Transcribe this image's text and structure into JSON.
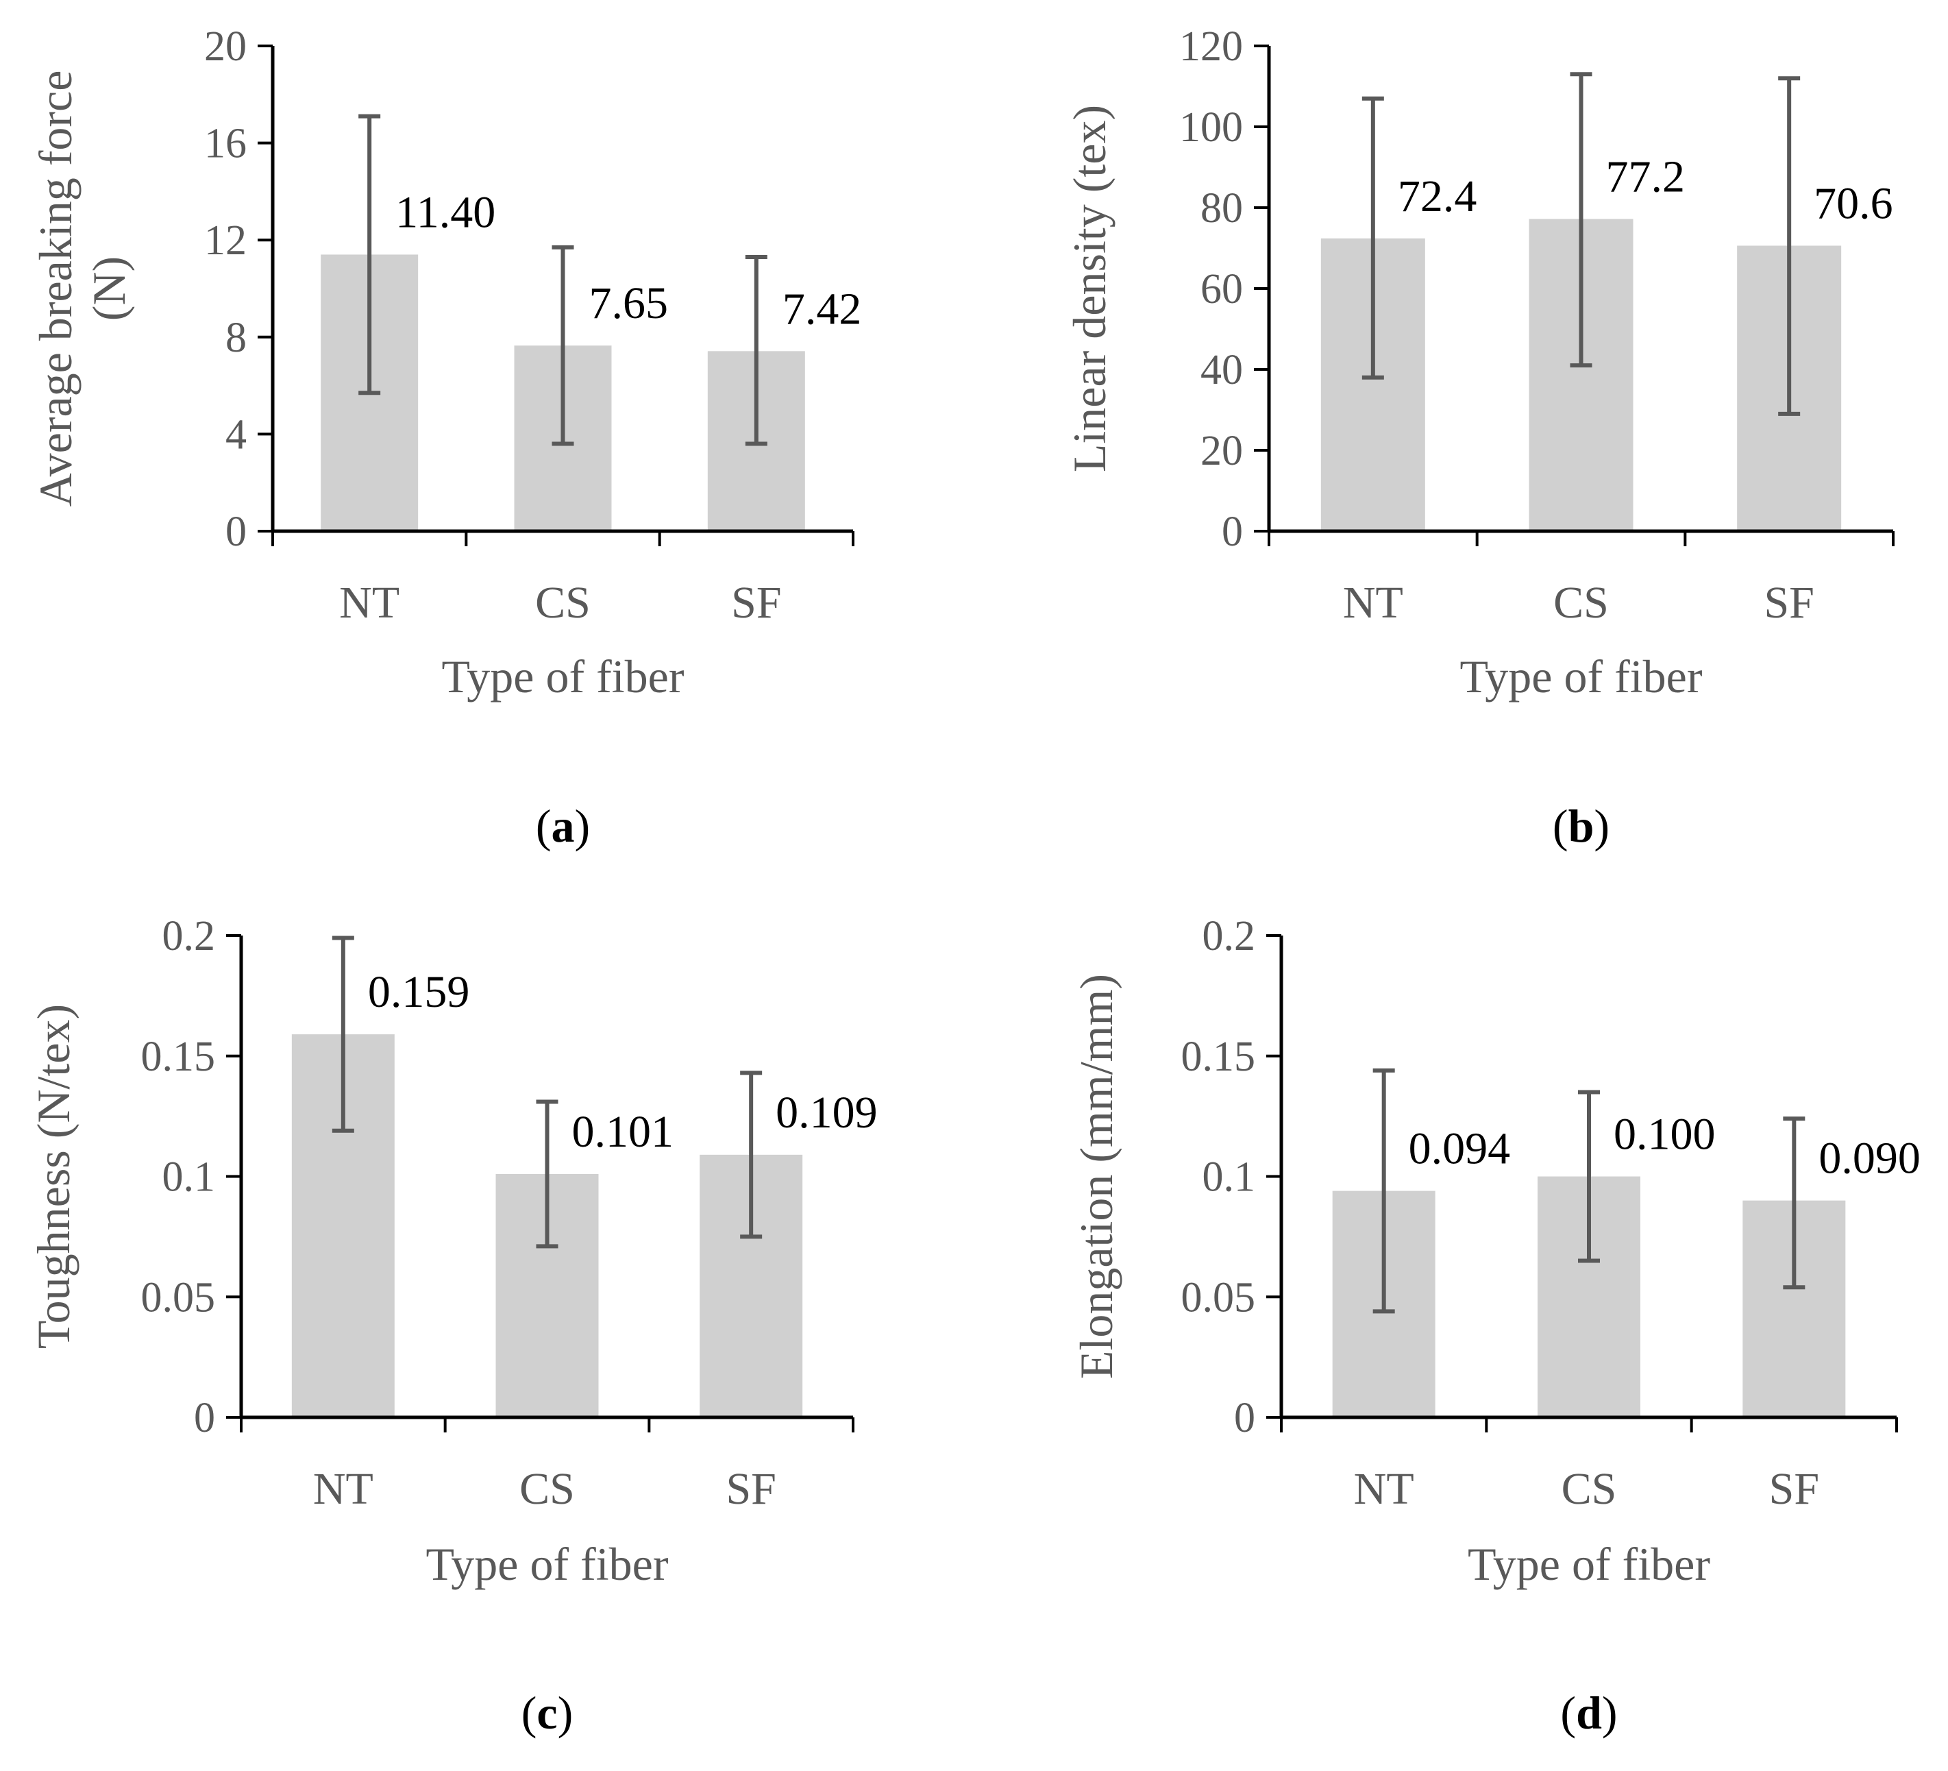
{
  "chart_data": [
    {
      "id": "a",
      "type": "bar",
      "panel_label": "a",
      "categories": [
        "NT",
        "CS",
        "SF"
      ],
      "values": [
        11.4,
        7.65,
        7.42
      ],
      "value_labels": [
        "11.40",
        "7.65",
        "7.42"
      ],
      "error_low": [
        5.7,
        3.6,
        3.6
      ],
      "error_high": [
        17.1,
        11.7,
        11.3
      ],
      "ylim": [
        0,
        20
      ],
      "yticks": [
        0,
        4,
        8,
        12,
        16,
        20
      ],
      "ytick_labels": [
        "0",
        "4",
        "8",
        "12",
        "16",
        "20"
      ],
      "xlabel": "Type of fiber",
      "ylabel_lines": [
        "Average breaking force",
        "(N)"
      ]
    },
    {
      "id": "b",
      "type": "bar",
      "panel_label": "b",
      "categories": [
        "NT",
        "CS",
        "SF"
      ],
      "values": [
        72.4,
        77.2,
        70.6
      ],
      "value_labels": [
        "72.4",
        "77.2",
        "70.6"
      ],
      "error_low": [
        38,
        41,
        29
      ],
      "error_high": [
        107,
        113,
        112
      ],
      "ylim": [
        0,
        120
      ],
      "yticks": [
        0,
        20,
        40,
        60,
        80,
        100,
        120
      ],
      "ytick_labels": [
        "0",
        "20",
        "40",
        "60",
        "80",
        "100",
        "120"
      ],
      "xlabel": "Type of fiber",
      "ylabel_lines": [
        "Linear density (tex)"
      ]
    },
    {
      "id": "c",
      "type": "bar",
      "panel_label": "c",
      "categories": [
        "NT",
        "CS",
        "SF"
      ],
      "values": [
        0.159,
        0.101,
        0.109
      ],
      "value_labels": [
        "0.159",
        "0.101",
        "0.109"
      ],
      "error_low": [
        0.119,
        0.071,
        0.075
      ],
      "error_high": [
        0.199,
        0.131,
        0.143
      ],
      "ylim": [
        0,
        0.2
      ],
      "yticks": [
        0,
        0.05,
        0.1,
        0.15,
        0.2
      ],
      "ytick_labels": [
        "0",
        "0.05",
        "0.1",
        "0.15",
        "0.2"
      ],
      "xlabel": "Type of fiber",
      "ylabel_lines": [
        "Toughness (N/tex)"
      ]
    },
    {
      "id": "d",
      "type": "bar",
      "panel_label": "d",
      "categories": [
        "NT",
        "CS",
        "SF"
      ],
      "values": [
        0.094,
        0.1,
        0.09
      ],
      "value_labels": [
        "0.094",
        "0.100",
        "0.090"
      ],
      "error_low": [
        0.044,
        0.065,
        0.054
      ],
      "error_high": [
        0.144,
        0.135,
        0.124
      ],
      "ylim": [
        0,
        0.2
      ],
      "yticks": [
        0,
        0.05,
        0.1,
        0.15,
        0.2
      ],
      "ytick_labels": [
        "0",
        "0.05",
        "0.1",
        "0.15",
        "0.2"
      ],
      "xlabel": "Type of fiber",
      "ylabel_lines": [
        "Elongation (mm/mm)"
      ]
    }
  ],
  "colors": {
    "bar": "#d0d0d0",
    "error_bar": "#595959",
    "axis": "#000000",
    "tick_text": "#595959",
    "data_label": "#000000"
  }
}
